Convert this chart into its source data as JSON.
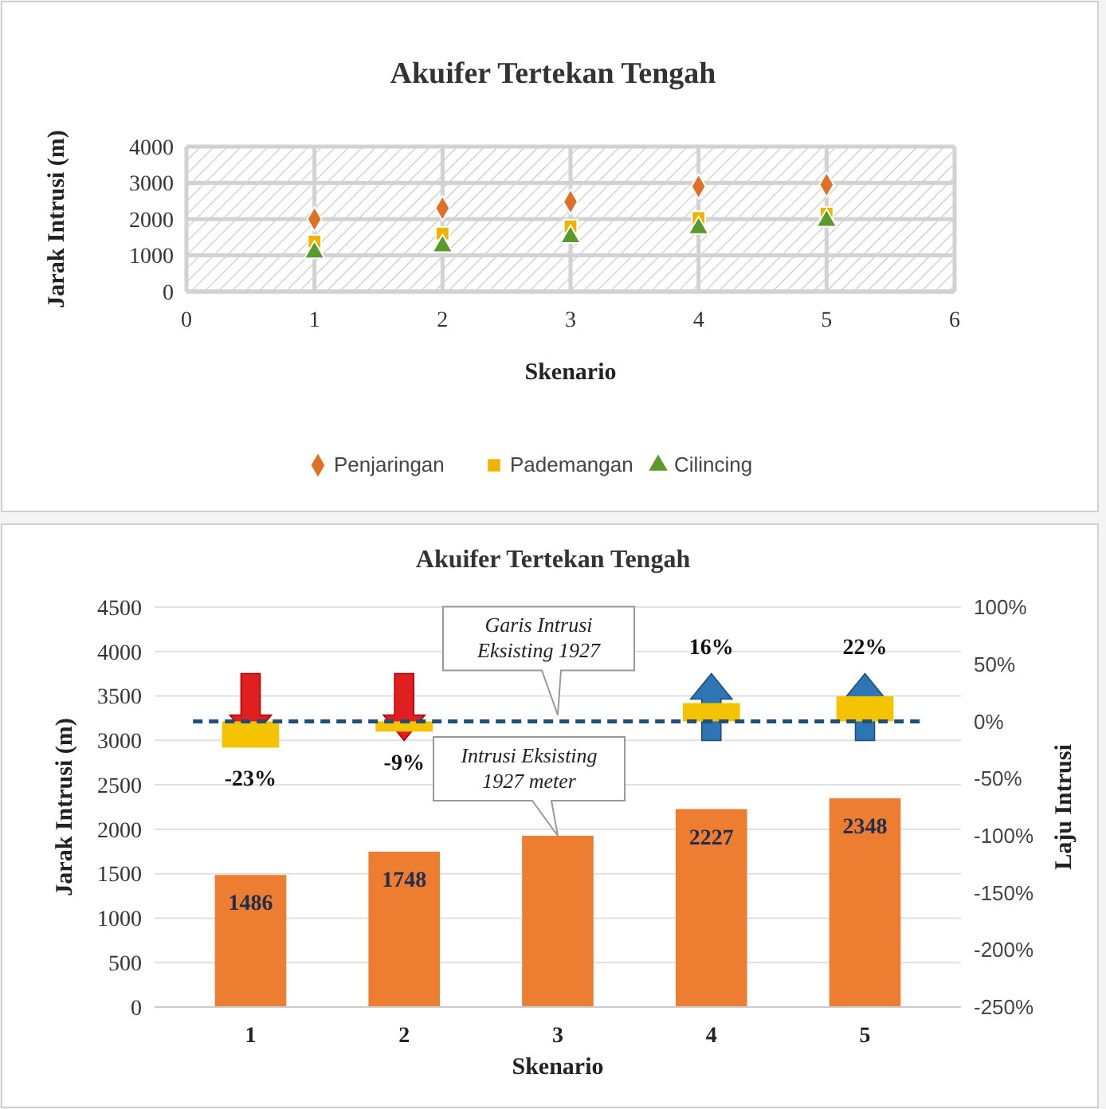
{
  "chart_data": [
    {
      "type": "scatter",
      "title": "Akuifer Tertekan Tengah",
      "xlabel": "Skenario",
      "ylabel": "Jarak Intrusi (m)",
      "x": [
        1,
        2,
        3,
        4,
        5
      ],
      "xlim": [
        0,
        6
      ],
      "xticks": [
        0,
        1,
        2,
        3,
        4,
        5,
        6
      ],
      "ylim": [
        0,
        4000
      ],
      "yticks": [
        0,
        1000,
        2000,
        3000,
        4000
      ],
      "grid": true,
      "legend": "bottom",
      "series": [
        {
          "name": "Penjaringan",
          "color": "#e07028",
          "marker": "diamond",
          "values": [
            2000,
            2300,
            2480,
            2900,
            2950
          ]
        },
        {
          "name": "Pademangan",
          "color": "#f0b400",
          "marker": "square",
          "values": [
            1380,
            1600,
            1800,
            2030,
            2150
          ]
        },
        {
          "name": "Cilincing",
          "color": "#5a9a2a",
          "marker": "triangle",
          "values": [
            1080,
            1250,
            1500,
            1750,
            1950
          ]
        }
      ]
    },
    {
      "type": "bar",
      "title": "Akuifer Tertekan Tengah",
      "xlabel": "Skenario",
      "ylabel": "Jarak Intrusi (m)",
      "y2label": "Laju Intrusi",
      "categories": [
        "1",
        "2",
        "3",
        "4",
        "5"
      ],
      "ylim": [
        0,
        4500
      ],
      "yticks": [
        0,
        500,
        1000,
        1500,
        2000,
        2500,
        3000,
        3500,
        4000,
        4500
      ],
      "y2lim": [
        -250,
        100
      ],
      "y2ticks": [
        {
          "value": -250,
          "label": "-250%"
        },
        {
          "value": -200,
          "label": "-200%"
        },
        {
          "value": -150,
          "label": "-150%"
        },
        {
          "value": -100,
          "label": "-100%"
        },
        {
          "value": -50,
          "label": "-50%"
        },
        {
          "value": 0,
          "label": "0%"
        },
        {
          "value": 50,
          "label": "50%"
        },
        {
          "value": 100,
          "label": "100%"
        }
      ],
      "grid": "y",
      "series": [
        {
          "color": "#ed7d31",
          "values": [
            1486,
            1748,
            1927,
            2227,
            2348
          ],
          "value_labels": [
            "1486",
            "1748",
            null,
            "2227",
            "2348"
          ]
        },
        {
          "color": "#f5c400",
          "axis": "y2",
          "values": [
            -23,
            -9,
            null,
            16,
            22
          ],
          "value_labels": [
            "-23%",
            "-9%",
            null,
            "16%",
            "22%"
          ]
        }
      ],
      "ref_lines": [
        {
          "axis": "y2",
          "value": 0,
          "label": "Garis Intrusi Eksisting 1927",
          "color": "#1f4e79",
          "line_style": "dashed"
        }
      ],
      "annotations": [
        {
          "text": "Intrusi Eksisting 1927 meter",
          "x": "3",
          "y": 1927
        }
      ]
    }
  ]
}
